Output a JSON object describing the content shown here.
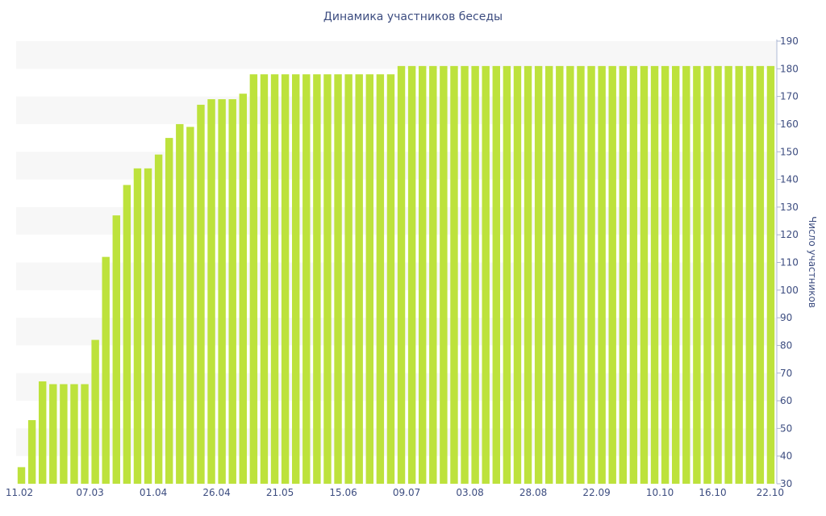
{
  "chart_data": {
    "type": "bar",
    "title": "Динамика участников беседы",
    "ylabel": "Число участников",
    "xlabel": "",
    "ylim": [
      30,
      190
    ],
    "y_ticks": [
      30,
      40,
      50,
      60,
      70,
      80,
      90,
      100,
      110,
      120,
      130,
      140,
      150,
      160,
      170,
      180,
      190
    ],
    "x_tick_labels": [
      "11.02",
      "07.03",
      "01.04",
      "26.04",
      "21.05",
      "15.06",
      "09.07",
      "03.08",
      "28.08",
      "22.09",
      "10.10",
      "16.10",
      "22.10"
    ],
    "x_tick_positions": [
      0,
      6.5,
      12.5,
      18.5,
      24.5,
      30.5,
      36.5,
      42.5,
      48.5,
      54.5,
      60.5,
      65.5,
      70.5
    ],
    "values": [
      36,
      53,
      67,
      66,
      66,
      66,
      66,
      82,
      112,
      127,
      138,
      144,
      144,
      149,
      155,
      160,
      159,
      167,
      169,
      169,
      169,
      171,
      178,
      178,
      178,
      178,
      178,
      178,
      178,
      178,
      178,
      178,
      178,
      178,
      178,
      178,
      181,
      181,
      181,
      181,
      181,
      181,
      181,
      181,
      181,
      181,
      181,
      181,
      181,
      181,
      181,
      181,
      181,
      181,
      181,
      181,
      181,
      181,
      181,
      181,
      181,
      181,
      181,
      181,
      181,
      181,
      181,
      181,
      181,
      181,
      181,
      181
    ],
    "bar_color": "#bde23c",
    "band_color": "#f7f7f7",
    "text_color": "#3d4d80",
    "grid": "alternating horizontal bands",
    "y_axis_position": "right"
  }
}
